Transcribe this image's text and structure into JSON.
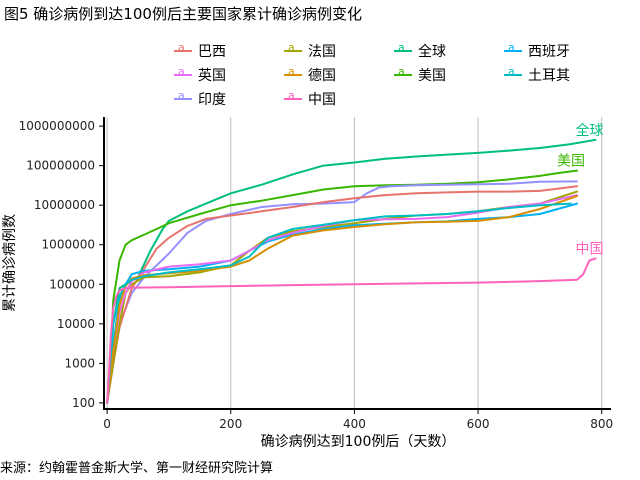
{
  "title": "图5 确诊病例到达100例后主要国家累计确诊病例变化",
  "source": "来源：约翰霍普金斯大学、第一财经研究院计算",
  "colors": {
    "巴西": "#e8736c",
    "法国": "#a3a500",
    "全球": "#00bf7d",
    "西班牙": "#00b0f6",
    "英国": "#e76bf3",
    "德国": "#d89000",
    "美国": "#39b600",
    "土耳其": "#00bfc4",
    "印度": "#9590ff",
    "中国": "#ff62bc"
  },
  "legend_order": [
    "巴西",
    "法国",
    "全球",
    "西班牙",
    "英国",
    "德国",
    "美国",
    "土耳其",
    "印度",
    "中国"
  ],
  "chart_data": {
    "type": "line",
    "title": "图5 确诊病例到达100例后主要国家累计确诊病例变化",
    "xlabel": "确诊病例达到100例后（天数）",
    "ylabel": "累计确诊病例数",
    "y_scale": "log10",
    "xlim": [
      -5,
      815
    ],
    "ylim": [
      70,
      1700000000
    ],
    "x_ticks": [
      0,
      200,
      400,
      600,
      800
    ],
    "y_ticks": [
      100,
      1000,
      10000,
      100000,
      1000000,
      10000000,
      100000000,
      1000000000
    ],
    "y_tick_labels": [
      "100",
      "1000",
      "10000",
      "100000",
      "1000000",
      "10000000",
      "100000000",
      "1000000000"
    ],
    "grid": "vertical",
    "legend": "top",
    "end_labels": [
      "全球",
      "美国",
      "中国"
    ],
    "series": [
      {
        "name": "全球",
        "x": [
          0,
          5,
          10,
          20,
          30,
          50,
          70,
          90,
          100,
          130,
          160,
          200,
          250,
          300,
          350,
          400,
          450,
          500,
          550,
          600,
          650,
          700,
          750,
          790
        ],
        "y": [
          100,
          1000,
          10000,
          80000,
          100000,
          150000,
          700000,
          2500000,
          4000000,
          7000000,
          11000000,
          20000000,
          33000000,
          60000000,
          100000000,
          120000000,
          150000000,
          170000000,
          190000000,
          210000000,
          240000000,
          280000000,
          350000000,
          450000000
        ]
      },
      {
        "name": "美国",
        "x": [
          0,
          5,
          10,
          20,
          30,
          40,
          60,
          80,
          100,
          150,
          200,
          250,
          300,
          350,
          400,
          450,
          500,
          550,
          600,
          650,
          700,
          730,
          760
        ],
        "y": [
          100,
          1000,
          40000,
          400000,
          1000000,
          1300000,
          1800000,
          2500000,
          3500000,
          6000000,
          10000000,
          13000000,
          18000000,
          25000000,
          30000000,
          32000000,
          33000000,
          35000000,
          38000000,
          45000000,
          55000000,
          65000000,
          75000000
        ]
      },
      {
        "name": "印度",
        "x": [
          0,
          10,
          20,
          40,
          60,
          80,
          100,
          130,
          160,
          200,
          250,
          300,
          350,
          400,
          420,
          440,
          460,
          500,
          550,
          600,
          650,
          700,
          760
        ],
        "y": [
          100,
          1000,
          10000,
          60000,
          150000,
          300000,
          600000,
          2000000,
          4000000,
          6000000,
          9000000,
          10500000,
          11000000,
          12000000,
          20000000,
          28000000,
          30000000,
          32000000,
          33000000,
          34000000,
          35000000,
          39000000,
          40000000
        ]
      },
      {
        "name": "巴西",
        "x": [
          0,
          10,
          20,
          40,
          60,
          80,
          100,
          130,
          160,
          200,
          250,
          300,
          350,
          400,
          450,
          500,
          550,
          600,
          650,
          700,
          760
        ],
        "y": [
          100,
          1000,
          8000,
          80000,
          250000,
          800000,
          1500000,
          3000000,
          4500000,
          5500000,
          7000000,
          9000000,
          12000000,
          15000000,
          18000000,
          20000000,
          21000000,
          22000000,
          22000000,
          23000000,
          30000000
        ]
      },
      {
        "name": "法国",
        "x": [
          0,
          10,
          20,
          30,
          40,
          60,
          100,
          150,
          200,
          230,
          260,
          300,
          350,
          400,
          450,
          500,
          550,
          600,
          650,
          700,
          760
        ],
        "y": [
          100,
          1000,
          10000,
          60000,
          100000,
          150000,
          160000,
          200000,
          300000,
          700000,
          1500000,
          2200000,
          2800000,
          3500000,
          4500000,
          5500000,
          6000000,
          7000000,
          9000000,
          11000000,
          22000000
        ]
      },
      {
        "name": "西班牙",
        "x": [
          0,
          10,
          20,
          30,
          40,
          60,
          100,
          150,
          200,
          230,
          260,
          300,
          350,
          400,
          450,
          500,
          550,
          600,
          650,
          700,
          760
        ],
        "y": [
          100,
          3000,
          40000,
          100000,
          180000,
          220000,
          240000,
          280000,
          400000,
          700000,
          1200000,
          1800000,
          2500000,
          3100000,
          3400000,
          3700000,
          3900000,
          4500000,
          5000000,
          6000000,
          11000000
        ]
      },
      {
        "name": "英国",
        "x": [
          0,
          10,
          20,
          30,
          40,
          60,
          100,
          150,
          200,
          230,
          260,
          300,
          350,
          400,
          450,
          500,
          550,
          600,
          650,
          700,
          760
        ],
        "y": [
          100,
          2000,
          20000,
          60000,
          120000,
          200000,
          280000,
          320000,
          400000,
          700000,
          1300000,
          2000000,
          3000000,
          4200000,
          4400000,
          4500000,
          5000000,
          6500000,
          9000000,
          11000000,
          18000000
        ]
      },
      {
        "name": "德国",
        "x": [
          0,
          10,
          20,
          30,
          40,
          60,
          100,
          150,
          200,
          230,
          260,
          300,
          350,
          400,
          450,
          500,
          550,
          600,
          650,
          700,
          760
        ],
        "y": [
          100,
          2000,
          30000,
          90000,
          140000,
          170000,
          190000,
          220000,
          280000,
          400000,
          800000,
          1700000,
          2300000,
          2800000,
          3300000,
          3700000,
          3800000,
          4000000,
          5000000,
          8000000,
          17000000
        ]
      },
      {
        "name": "土耳其",
        "x": [
          0,
          10,
          20,
          30,
          40,
          60,
          100,
          150,
          200,
          230,
          260,
          300,
          350,
          400,
          450,
          500,
          550,
          600,
          650,
          700,
          750
        ],
        "y": [
          100,
          10000,
          50000,
          100000,
          130000,
          160000,
          200000,
          240000,
          300000,
          500000,
          1500000,
          2500000,
          3200000,
          4200000,
          5200000,
          5500000,
          6000000,
          7000000,
          8500000,
          10000000,
          11000000
        ]
      },
      {
        "name": "中国",
        "x": [
          0,
          3,
          6,
          10,
          15,
          20,
          30,
          40,
          60,
          100,
          200,
          300,
          400,
          500,
          600,
          700,
          760,
          770,
          780,
          790
        ],
        "y": [
          100,
          500,
          5000,
          25000,
          50000,
          70000,
          80000,
          82000,
          83000,
          84000,
          90000,
          95000,
          100000,
          105000,
          110000,
          120000,
          130000,
          180000,
          400000,
          450000
        ]
      }
    ]
  }
}
